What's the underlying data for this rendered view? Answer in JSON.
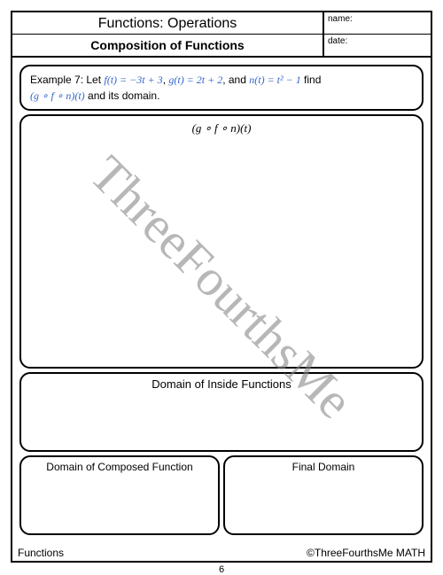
{
  "header": {
    "title": "Functions: Operations",
    "subtitle": "Composition of Functions",
    "name_label": "name:",
    "date_label": "date:"
  },
  "example": {
    "prefix": "Example 7: Let ",
    "f": "f(t) = −3t + 3",
    "g": "g(t) = 2t + 2",
    "n": "n(t) = t² − 1",
    "suffix": " find",
    "line2_expr": "(g ∘ f ∘ n)(t)",
    "line2_suffix": " and its domain."
  },
  "work_label": "(g ∘ f ∘ n)(t)",
  "domain_inside_label": "Domain of Inside Functions",
  "domain_composed_label": "Domain of Composed Function",
  "final_domain_label": "Final Domain",
  "footer": {
    "left": "Functions",
    "right": "©ThreeFourthsMe MATH",
    "page": "6"
  },
  "watermark": "ThreeFourthsMe",
  "colors": {
    "border": "#000000",
    "text": "#000000",
    "accent": "#3366cc",
    "watermark": "#888888",
    "background": "#ffffff"
  }
}
